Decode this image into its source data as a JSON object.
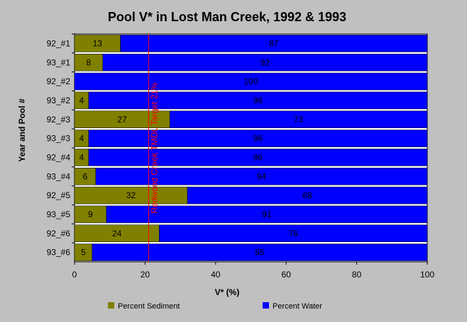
{
  "chart_data": {
    "type": "bar",
    "orientation": "horizontal",
    "stacked": true,
    "title": "Pool V* in Lost Man Creek, 1992 & 1993",
    "xlabel": "V* (%)",
    "ylabel": "Year and Pool #",
    "xlim": [
      0,
      100
    ],
    "xticks": [
      "0",
      "20",
      "40",
      "60",
      "80",
      "100"
    ],
    "categories": [
      "92_#1",
      "93_#1",
      "92_#2",
      "93_#2",
      "92_#3",
      "93_#3",
      "92_#4",
      "93_#4",
      "92_#5",
      "93_#5",
      "92_#6",
      "93_#6"
    ],
    "series": [
      {
        "name": "Percent Sediment",
        "color": "#808000",
        "values": [
          13,
          8,
          0,
          4,
          27,
          4,
          4,
          6,
          32,
          9,
          24,
          5
        ]
      },
      {
        "name": "Percent Water",
        "color": "#0000ff",
        "values": [
          87,
          92,
          100,
          96,
          73,
          96,
          96,
          94,
          68,
          91,
          76,
          95
        ]
      }
    ],
    "target": {
      "value": 21,
      "label": "Redwood Creek TMDL Target 21%",
      "color": "#ff0000"
    },
    "legend_placement": "bottom",
    "grid": false
  }
}
